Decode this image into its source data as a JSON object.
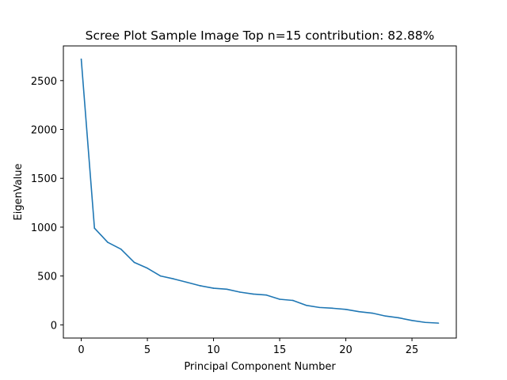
{
  "chart_data": {
    "type": "line",
    "title": "Scree Plot Sample Image Top n=15 contribution: 82.88%",
    "xlabel": "Principal Component Number",
    "ylabel": "EigenValue",
    "xlim": [
      -1.35,
      28.35
    ],
    "ylim": [
      -135,
      2855
    ],
    "xticks": [
      0,
      5,
      10,
      15,
      20,
      25
    ],
    "yticks": [
      0,
      500,
      1000,
      1500,
      2000,
      2500
    ],
    "grid": false,
    "line_color": "#1f77b4",
    "series": [
      {
        "x": [
          0,
          1,
          2,
          3,
          4,
          5,
          6,
          7,
          8,
          9,
          10,
          11,
          12,
          13,
          14,
          15,
          16,
          17,
          18,
          19,
          20,
          21,
          22,
          23,
          24,
          25,
          26,
          27
        ],
        "values": [
          2720,
          990,
          845,
          775,
          640,
          580,
          500,
          470,
          435,
          400,
          375,
          365,
          335,
          315,
          305,
          262,
          250,
          200,
          178,
          170,
          158,
          135,
          120,
          90,
          72,
          45,
          25,
          18
        ]
      }
    ]
  }
}
